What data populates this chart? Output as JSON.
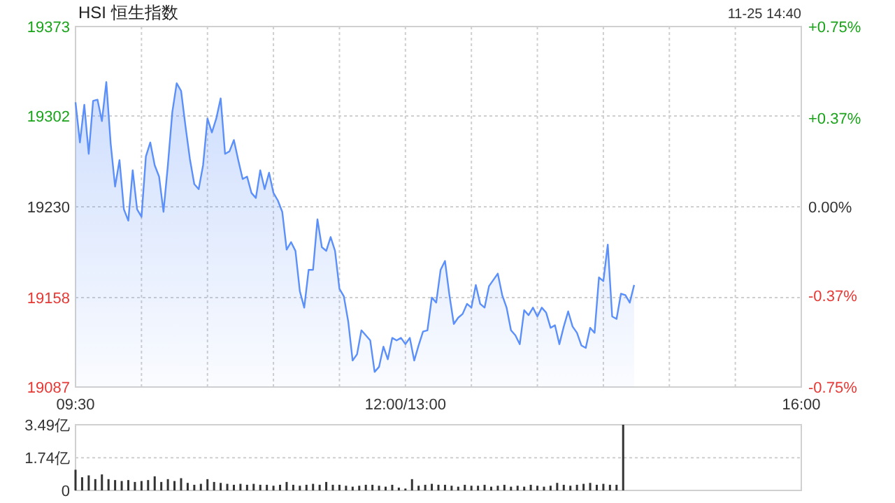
{
  "chart_data": [
    {
      "type": "area",
      "title": "HSI 恒生指数",
      "annotations": [
        "11-25 14:40"
      ],
      "color": "#5b8ff9",
      "grid": true,
      "categories": [
        "09:30",
        null,
        null,
        null,
        null,
        null,
        null,
        null,
        null,
        null,
        null,
        null,
        null,
        null,
        null,
        null,
        null,
        null,
        null,
        null,
        null,
        null,
        null,
        null,
        null,
        null,
        null,
        null,
        null,
        null,
        null,
        null,
        null,
        null,
        null,
        null,
        null,
        null,
        null,
        null,
        null,
        null,
        null,
        null,
        null,
        null,
        null,
        null,
        null,
        null,
        null,
        null,
        null,
        null,
        null,
        null,
        null,
        null,
        null,
        null,
        null,
        null,
        null,
        null,
        null,
        null,
        null,
        null,
        null,
        null,
        null,
        null,
        null,
        null,
        null,
        "12:00/13:00",
        null,
        null,
        null,
        null,
        null,
        null,
        null,
        null,
        null,
        null,
        null,
        null,
        null,
        null,
        null,
        null,
        null,
        null,
        null,
        null,
        null,
        null,
        null,
        null,
        null,
        null,
        null,
        null,
        null,
        null,
        null,
        null,
        null,
        null,
        null,
        null,
        null,
        null,
        null,
        null,
        null,
        null,
        null,
        null,
        null,
        null,
        null,
        null,
        null,
        null,
        null,
        null,
        null,
        null,
        null,
        null,
        null,
        null,
        null,
        null,
        null,
        null,
        null,
        null,
        null,
        null,
        null,
        null,
        null,
        null,
        null,
        null,
        null,
        null,
        null,
        null,
        null,
        null,
        null,
        null,
        null,
        null,
        null,
        null,
        null,
        null,
        null,
        null,
        null,
        "16:00"
      ],
      "values": [
        19313,
        19281,
        19311,
        19272,
        19314,
        19315,
        19298,
        19329,
        19280,
        19246,
        19267,
        19228,
        19219,
        19259,
        19228,
        19222,
        19270,
        19281,
        19263,
        19254,
        19226,
        19263,
        19305,
        19328,
        19322,
        19294,
        19268,
        19248,
        19244,
        19263,
        19300,
        19289,
        19300,
        19316,
        19272,
        19274,
        19283,
        19267,
        19252,
        19254,
        19241,
        19237,
        19259,
        19244,
        19257,
        19241,
        19235,
        19226,
        19196,
        19202,
        19195,
        19163,
        19150,
        19180,
        19180,
        19220,
        19198,
        19195,
        19206,
        19195,
        19165,
        19159,
        19139,
        19108,
        19113,
        19132,
        19128,
        19124,
        19099,
        19103,
        19119,
        19109,
        19126,
        19124,
        19126,
        19121,
        19126,
        19108,
        19120,
        19131,
        19132,
        19158,
        19154,
        19180,
        19187,
        19160,
        19137,
        19142,
        19145,
        19153,
        19150,
        19168,
        19153,
        19150,
        19167,
        19172,
        19177,
        19160,
        19150,
        19132,
        19128,
        19121,
        19148,
        19144,
        19150,
        19143,
        19150,
        19146,
        19134,
        19136,
        19121,
        19135,
        19147,
        19135,
        19130,
        19120,
        19118,
        19134,
        19130,
        19174,
        19171,
        19200,
        19143,
        19141,
        19161,
        19160,
        19154,
        19168,
        null,
        null,
        null,
        null,
        null,
        null,
        null,
        null,
        null,
        null,
        null,
        null,
        null,
        null,
        null,
        null,
        null,
        null,
        null,
        null,
        null,
        null,
        null,
        null,
        null,
        null,
        null,
        null,
        null,
        null,
        null,
        null,
        null,
        null,
        null,
        null,
        null,
        null
      ],
      "ylim": [
        19087,
        19373
      ],
      "yticks": [
        19087,
        19158,
        19230,
        19302,
        19373
      ],
      "y2lim": [
        -0.75,
        0.75
      ],
      "y2ticks": [
        {
          "value": -0.75,
          "label": "-0.75%"
        },
        {
          "value": -0.37,
          "label": "-0.37%"
        },
        {
          "value": 0,
          "label": "0.00%"
        },
        {
          "value": 0.37,
          "label": "+0.37%"
        },
        {
          "value": 0.75,
          "label": "+0.75%"
        }
      ]
    },
    {
      "type": "bar",
      "color": "#333333",
      "grid": "y",
      "tick_labels": "y",
      "categories": [
        null,
        null,
        null,
        null,
        null,
        null,
        null,
        null,
        null,
        null,
        null,
        null,
        null,
        null,
        null,
        null,
        null,
        null,
        null,
        null,
        null,
        null,
        null,
        null,
        null,
        null,
        null,
        null,
        null,
        null,
        null,
        null,
        null,
        null,
        null,
        null,
        null,
        null,
        null,
        null,
        null,
        null,
        null,
        null,
        null,
        null,
        null,
        null,
        null,
        null,
        null,
        null,
        null,
        null,
        null,
        null,
        null,
        null,
        null,
        null,
        null,
        null,
        null,
        null,
        null,
        null,
        null,
        null,
        null,
        null,
        null,
        null,
        null,
        null,
        null,
        null,
        null,
        null,
        null,
        null,
        null,
        null,
        null,
        null,
        null,
        null,
        null,
        null,
        null,
        null,
        null,
        null,
        null,
        null,
        null,
        null,
        null,
        null,
        null,
        null,
        null,
        null,
        null,
        null,
        null,
        null,
        null,
        null,
        null,
        null,
        null
      ],
      "values": [
        1.1,
        0.7,
        0.8,
        0.6,
        0.85,
        0.6,
        0.55,
        0.5,
        0.55,
        0.45,
        0.5,
        0.55,
        0.75,
        0.45,
        0.6,
        0.5,
        0.65,
        0.4,
        0.3,
        0.35,
        0.6,
        0.45,
        0.4,
        0.35,
        0.3,
        0.35,
        0.3,
        0.35,
        0.3,
        0.3,
        0.25,
        0.3,
        0.45,
        0.3,
        0.25,
        0.3,
        0.35,
        0.3,
        0.45,
        0.3,
        0.3,
        0.25,
        0.2,
        0.25,
        0.3,
        0.3,
        0.25,
        0.2,
        0.3,
        0.15,
        0.1,
        0.6,
        0.25,
        0.3,
        0.35,
        0.3,
        0.3,
        0.25,
        0.2,
        0.3,
        0.25,
        0.25,
        0.3,
        0.2,
        0.25,
        0.3,
        0.2,
        0.25,
        0.2,
        0.3,
        0.25,
        0.2,
        0.25,
        0.4,
        0.3,
        0.25,
        0.3,
        0.35,
        0.4,
        0.3,
        0.35,
        0.3,
        0.3,
        3.49,
        null,
        null,
        null,
        null,
        null,
        null,
        null,
        null,
        null,
        null,
        null,
        null,
        null,
        null,
        null,
        null,
        null,
        null,
        null,
        null,
        null,
        null,
        null,
        null,
        null,
        null,
        null
      ],
      "ylim": [
        0,
        3.49
      ],
      "yticks": [
        0,
        {
          "value": 1.74,
          "label": "1.74亿"
        },
        {
          "value": 3.49,
          "label": "3.49亿"
        }
      ]
    }
  ]
}
